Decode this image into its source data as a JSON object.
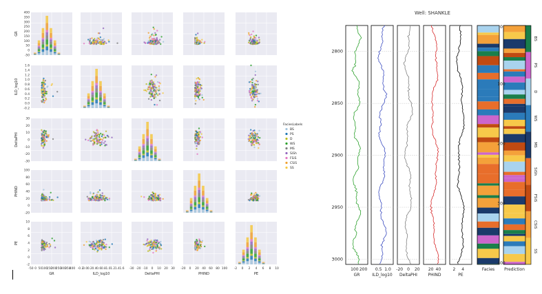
{
  "chart_data": [
    {
      "type": "scatter",
      "title": "",
      "variables": [
        "GR",
        "ILD_log10",
        "DeltaPHI",
        "PHIND",
        "PE"
      ],
      "axis_labels": {
        "GR": "GR",
        "ILD_log10": "ILD_log10",
        "DeltaPHI": "DeltaPHI",
        "PHIND": "PHIND",
        "PE": "PE"
      },
      "ranges": {
        "GR": [
          -50,
          400
        ],
        "ILD_log10": [
          -0.2,
          1.6
        ],
        "DeltaPHI": [
          -30,
          30
        ],
        "PHIND": [
          -20,
          100
        ],
        "PE": [
          -2,
          10
        ]
      },
      "y_ticks": {
        "GR": [
          "400",
          "350",
          "300",
          "250",
          "200",
          "150",
          "100",
          "50",
          "0",
          "-50"
        ],
        "ILD_log10": [
          "1.6",
          "1.4",
          "1.2",
          "1.0",
          "0.8",
          "0.6",
          "0.4",
          "0.2",
          "0.0",
          "-0.2"
        ],
        "DeltaPHI": [
          "30",
          "20",
          "10",
          "0",
          "-10",
          "-20",
          "-30"
        ],
        "PHIND": [
          "100",
          "80",
          "60",
          "40",
          "20",
          "0",
          "-20"
        ],
        "PE": [
          "10",
          "8",
          "6",
          "4",
          "2",
          "0",
          "-2"
        ]
      },
      "x_ticks": {
        "GR": [
          "-50",
          "0",
          "50",
          "100",
          "150",
          "200",
          "250",
          "300",
          "350",
          "400"
        ],
        "ILD_log10": [
          "-0.2",
          "0.0",
          "0.2",
          "0.4",
          "0.6",
          "0.8",
          "1.0",
          "1.2",
          "1.4",
          "1.6"
        ],
        "DeltaPHI": [
          "-30",
          "-20",
          "-10",
          "0",
          "10",
          "20",
          "30"
        ],
        "PHIND": [
          "-20",
          "0",
          "20",
          "40",
          "60",
          "80",
          "100"
        ],
        "PE": [
          "-2",
          "0",
          "2",
          "4",
          "6",
          "8",
          "10"
        ]
      },
      "legend": {
        "title": "FaciesLabels",
        "entries": [
          "BS",
          "PS",
          "D",
          "WS",
          "MS",
          "SiSh",
          "FSiS",
          "CSiS",
          "SS"
        ],
        "colors": [
          "#a3c4dc",
          "#1f77b4",
          "#bcbd22",
          "#2ca02c",
          "#7f7f7f",
          "#9467bd",
          "#e377c2",
          "#f0a030",
          "#f5c842"
        ],
        "placement": "right"
      },
      "histogram_diagonal": true
    },
    {
      "type": "line",
      "title": "Well: SHANKLE",
      "depth_axis": {
        "label": "",
        "range": [
          2775,
          3005
        ],
        "ticks": [
          "2800",
          "2850",
          "2900",
          "2950",
          "3000"
        ]
      },
      "tracks": [
        {
          "name": "GR",
          "color": "#2ca02c",
          "range": [
            0,
            250
          ],
          "ticks": [
            "100",
            "200"
          ]
        },
        {
          "name": "ILD_log10",
          "color": "#3b4cc0",
          "range": [
            0.1,
            1.3
          ],
          "ticks": [
            "0.5",
            "1.0"
          ]
        },
        {
          "name": "DeltaPHI",
          "color": "#808080",
          "range": [
            -25,
            25
          ],
          "ticks": [
            "-20",
            "0",
            "20"
          ]
        },
        {
          "name": "PHIND",
          "color": "#d62728",
          "range": [
            0,
            60
          ],
          "ticks": [
            "20",
            "40"
          ]
        },
        {
          "name": "PE",
          "color": "#000000",
          "range": [
            1,
            6
          ],
          "ticks": [
            "2",
            "4"
          ]
        }
      ],
      "facies_tracks": [
        {
          "name": "Facies"
        },
        {
          "name": "Prediction"
        }
      ],
      "overlay_ticks": [
        "0",
        "100",
        "200",
        "300",
        "400"
      ],
      "colorbar_labels": [
        "BS",
        "PS",
        "D",
        "WS",
        "MS",
        "SiSh",
        "FSiS",
        "CSiS",
        "SS"
      ],
      "colorbar_colors": [
        "#1a7f4b",
        "#cc66cc",
        "#a9d3ee",
        "#2b7bba",
        "#1b3a6b",
        "#e86e2b",
        "#c04a12",
        "#f4a13a",
        "#f7c94a"
      ]
    }
  ]
}
